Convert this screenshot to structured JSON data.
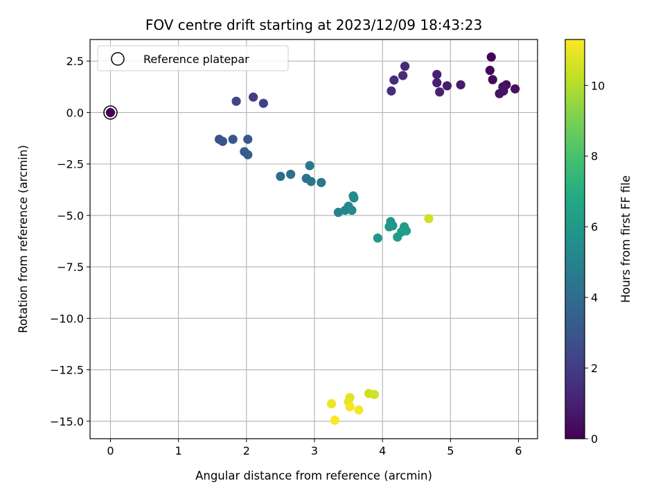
{
  "chart_data": {
    "type": "scatter",
    "title": "FOV centre drift starting at 2023/12/09 18:43:23",
    "xlabel": "Angular distance from reference (arcmin)",
    "ylabel": "Rotation from reference (arcmin)",
    "xlim": [
      -0.3,
      6.28
    ],
    "ylim": [
      -15.85,
      3.55
    ],
    "xticks": [
      0,
      1,
      2,
      3,
      4,
      5,
      6
    ],
    "xtick_labels": [
      "0",
      "1",
      "2",
      "3",
      "4",
      "5",
      "6"
    ],
    "yticks": [
      2.5,
      0.0,
      -2.5,
      -5.0,
      -7.5,
      -10.0,
      -12.5,
      -15.0
    ],
    "ytick_labels": [
      "2.5",
      "0.0",
      "−2.5",
      "−5.0",
      "−7.5",
      "−10.0",
      "−12.5",
      "−15.0"
    ],
    "grid": true,
    "legend": {
      "placement": "top-left",
      "entries": [
        {
          "label": "Reference platepar",
          "marker": "open-circle",
          "color": "#000000"
        }
      ]
    },
    "reference_point": {
      "x": 0.0,
      "y": 0.0
    },
    "colorbar": {
      "label": "Hours from first FF file",
      "colormap": "viridis",
      "range": [
        0,
        11.3
      ],
      "ticks": [
        0,
        2,
        4,
        6,
        8,
        10
      ],
      "tick_labels": [
        "0",
        "2",
        "4",
        "6",
        "8",
        "10"
      ]
    },
    "series": [
      {
        "points": [
          {
            "x": 0.0,
            "y": 0.0,
            "c": 0.0
          },
          {
            "x": 5.6,
            "y": 2.7,
            "c": 0.1
          },
          {
            "x": 5.58,
            "y": 2.05,
            "c": 0.2
          },
          {
            "x": 5.62,
            "y": 1.6,
            "c": 0.3
          },
          {
            "x": 5.82,
            "y": 1.35,
            "c": 0.4
          },
          {
            "x": 5.77,
            "y": 1.25,
            "c": 0.5
          },
          {
            "x": 5.95,
            "y": 1.15,
            "c": 0.5
          },
          {
            "x": 5.78,
            "y": 1.05,
            "c": 0.6
          },
          {
            "x": 5.72,
            "y": 0.92,
            "c": 0.6
          },
          {
            "x": 5.15,
            "y": 1.35,
            "c": 0.8
          },
          {
            "x": 4.95,
            "y": 1.3,
            "c": 0.9
          },
          {
            "x": 4.8,
            "y": 1.85,
            "c": 1.0
          },
          {
            "x": 4.8,
            "y": 1.45,
            "c": 1.0
          },
          {
            "x": 4.84,
            "y": 1.0,
            "c": 1.1
          },
          {
            "x": 4.33,
            "y": 2.25,
            "c": 1.3
          },
          {
            "x": 4.3,
            "y": 1.8,
            "c": 1.4
          },
          {
            "x": 4.17,
            "y": 1.58,
            "c": 1.5
          },
          {
            "x": 4.13,
            "y": 1.05,
            "c": 1.5
          },
          {
            "x": 2.1,
            "y": 0.75,
            "c": 2.0
          },
          {
            "x": 2.25,
            "y": 0.45,
            "c": 2.2
          },
          {
            "x": 1.85,
            "y": 0.55,
            "c": 2.3
          },
          {
            "x": 1.6,
            "y": -1.3,
            "c": 2.9
          },
          {
            "x": 1.65,
            "y": -1.4,
            "c": 3.0
          },
          {
            "x": 1.8,
            "y": -1.3,
            "c": 3.1
          },
          {
            "x": 2.02,
            "y": -1.3,
            "c": 3.2
          },
          {
            "x": 1.97,
            "y": -1.9,
            "c": 3.3
          },
          {
            "x": 2.02,
            "y": -2.05,
            "c": 3.3
          },
          {
            "x": 2.5,
            "y": -3.1,
            "c": 4.0
          },
          {
            "x": 2.65,
            "y": -3.0,
            "c": 4.1
          },
          {
            "x": 2.88,
            "y": -3.2,
            "c": 4.3
          },
          {
            "x": 2.95,
            "y": -3.35,
            "c": 4.4
          },
          {
            "x": 2.93,
            "y": -2.58,
            "c": 4.5
          },
          {
            "x": 3.1,
            "y": -3.4,
            "c": 4.6
          },
          {
            "x": 3.35,
            "y": -4.85,
            "c": 5.0
          },
          {
            "x": 3.45,
            "y": -4.75,
            "c": 5.1
          },
          {
            "x": 3.5,
            "y": -4.55,
            "c": 5.2
          },
          {
            "x": 3.55,
            "y": -4.75,
            "c": 5.3
          },
          {
            "x": 3.57,
            "y": -4.05,
            "c": 5.4
          },
          {
            "x": 3.58,
            "y": -4.15,
            "c": 5.4
          },
          {
            "x": 4.1,
            "y": -5.55,
            "c": 5.8
          },
          {
            "x": 4.12,
            "y": -5.3,
            "c": 5.9
          },
          {
            "x": 4.15,
            "y": -5.5,
            "c": 5.9
          },
          {
            "x": 3.93,
            "y": -6.1,
            "c": 6.0
          },
          {
            "x": 4.22,
            "y": -6.05,
            "c": 6.1
          },
          {
            "x": 4.28,
            "y": -5.8,
            "c": 6.2
          },
          {
            "x": 4.32,
            "y": -5.55,
            "c": 6.2
          },
          {
            "x": 4.35,
            "y": -5.75,
            "c": 6.3
          },
          {
            "x": 4.68,
            "y": -5.15,
            "c": 10.5
          },
          {
            "x": 3.8,
            "y": -13.65,
            "c": 10.4
          },
          {
            "x": 3.88,
            "y": -13.7,
            "c": 10.5
          },
          {
            "x": 3.52,
            "y": -13.85,
            "c": 10.8
          },
          {
            "x": 3.5,
            "y": -14.05,
            "c": 10.9
          },
          {
            "x": 3.25,
            "y": -14.15,
            "c": 11.0
          },
          {
            "x": 3.52,
            "y": -14.3,
            "c": 11.1
          },
          {
            "x": 3.65,
            "y": -14.45,
            "c": 11.2
          },
          {
            "x": 3.3,
            "y": -14.95,
            "c": 11.3
          }
        ]
      }
    ]
  }
}
